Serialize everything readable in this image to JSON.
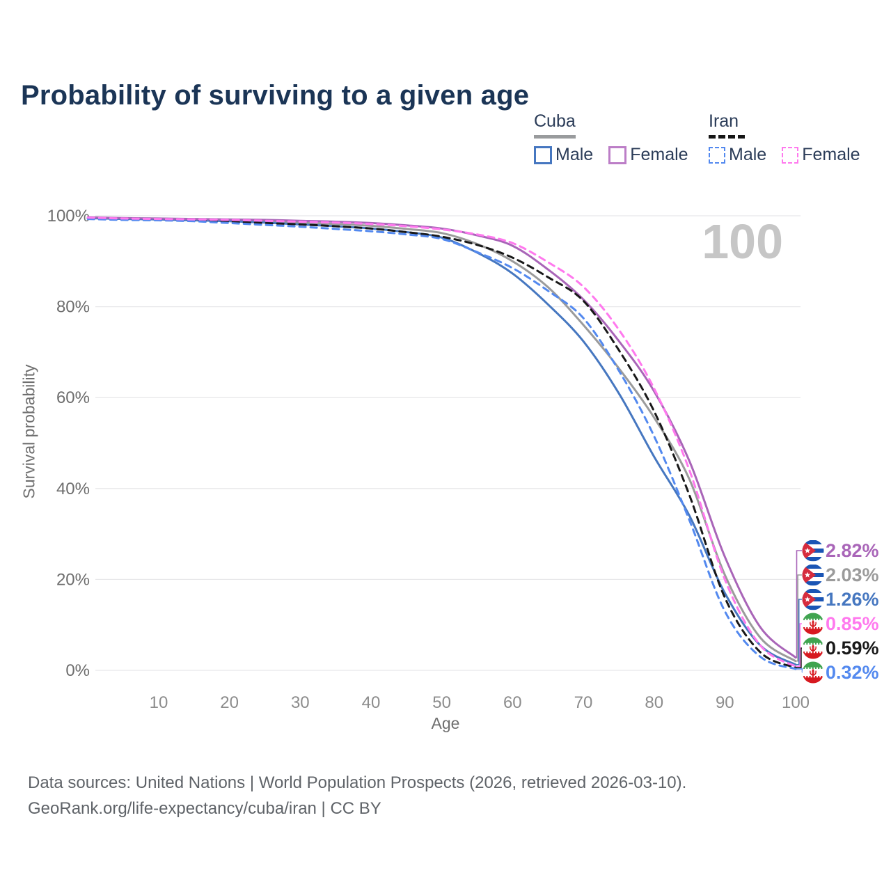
{
  "page": {
    "background": "#ffffff",
    "title_color": "#1b3556"
  },
  "legend": {
    "groups": [
      {
        "id": "cuba",
        "label": "Cuba",
        "line_style": "solid",
        "underline_color": "#999b9d",
        "items": [
          {
            "id": "cuba-male",
            "label": "Male",
            "color": "#4677c0"
          },
          {
            "id": "cuba-female",
            "label": "Female",
            "color": "#bc7ec7"
          }
        ]
      },
      {
        "id": "iran",
        "label": "Iran",
        "line_style": "dashed",
        "underline_color": "#161616",
        "items": [
          {
            "id": "iran-male",
            "label": "Male",
            "color": "#5389ef"
          },
          {
            "id": "iran-female",
            "label": "Female",
            "color": "#ff79ee"
          }
        ]
      }
    ]
  },
  "chart_data": {
    "type": "line",
    "title": "Probability of surviving to a given age",
    "xlabel": "Age",
    "ylabel": "Survival probability",
    "xlim": [
      0,
      100
    ],
    "ylim": [
      0,
      100
    ],
    "grid": "horizontal",
    "gridline_color": "#e8e8ea",
    "legend_position": "top-right",
    "watermark": "100",
    "watermark_color": "#c6c6c6",
    "x_ticks": [
      {
        "value": 10,
        "label": "10"
      },
      {
        "value": 20,
        "label": "20"
      },
      {
        "value": 30,
        "label": "30"
      },
      {
        "value": 40,
        "label": "40"
      },
      {
        "value": 50,
        "label": "50"
      },
      {
        "value": 60,
        "label": "60"
      },
      {
        "value": 70,
        "label": "70"
      },
      {
        "value": 80,
        "label": "80"
      },
      {
        "value": 90,
        "label": "90"
      },
      {
        "value": 100,
        "label": "100"
      }
    ],
    "y_ticks": [
      {
        "value": 0,
        "label": "0%"
      },
      {
        "value": 20,
        "label": "20%"
      },
      {
        "value": 40,
        "label": "40%"
      },
      {
        "value": 60,
        "label": "60%"
      },
      {
        "value": 80,
        "label": "80%"
      },
      {
        "value": 100,
        "label": "100%"
      }
    ],
    "x": [
      0,
      5,
      10,
      15,
      20,
      25,
      30,
      35,
      40,
      45,
      50,
      55,
      60,
      65,
      70,
      75,
      80,
      85,
      90,
      95,
      100
    ],
    "series": [
      {
        "id": "cuba-total",
        "name": "Cuba Both sexes",
        "country": "Cuba",
        "sex": "Both",
        "color": "#9b9b9b",
        "dash": "solid",
        "flag": "cuba-flag-icon",
        "end_label": "2.03%",
        "values": [
          99.6,
          99.4,
          99.3,
          99.2,
          99.0,
          98.8,
          98.5,
          98.2,
          97.8,
          97.1,
          96.2,
          93.8,
          90.0,
          84.3,
          76.0,
          66.5,
          55.6,
          42.0,
          21.0,
          7.2,
          2.03
        ]
      },
      {
        "id": "cuba-male",
        "name": "Cuba Male",
        "country": "Cuba",
        "sex": "Male",
        "color": "#4677c0",
        "dash": "solid",
        "flag": "cuba-flag-icon",
        "end_label": "1.26%",
        "values": [
          99.5,
          99.3,
          99.2,
          99.0,
          98.8,
          98.5,
          98.1,
          97.7,
          97.2,
          96.4,
          95.2,
          91.9,
          87.3,
          80.5,
          72.4,
          61.0,
          47.0,
          34.0,
          17.0,
          5.5,
          1.26
        ]
      },
      {
        "id": "cuba-female",
        "name": "Cuba Female",
        "country": "Cuba",
        "sex": "Female",
        "color": "#a965b8",
        "dash": "solid",
        "flag": "cuba-flag-icon",
        "end_label": "2.82%",
        "values": [
          99.7,
          99.5,
          99.4,
          99.3,
          99.2,
          99.1,
          98.9,
          98.7,
          98.4,
          97.9,
          97.2,
          95.7,
          93.4,
          88.2,
          81.6,
          72.5,
          61.4,
          46.0,
          25.0,
          9.5,
          2.82
        ]
      },
      {
        "id": "iran-total",
        "name": "Iran Both sexes",
        "country": "Iran",
        "sex": "Both",
        "color": "#191919",
        "dash": "dashed",
        "flag": "iran-flag-icon",
        "end_label": "0.59%",
        "values": [
          99.4,
          99.2,
          99.1,
          99.0,
          98.7,
          98.4,
          98.1,
          97.7,
          97.2,
          96.4,
          95.4,
          93.6,
          90.8,
          86.5,
          81.3,
          70.5,
          57.0,
          38.5,
          16.0,
          4.0,
          0.59
        ]
      },
      {
        "id": "iran-male",
        "name": "Iran Male",
        "country": "Iran",
        "sex": "Male",
        "color": "#5389ef",
        "dash": "dashed",
        "flag": "iran-flag-icon",
        "end_label": "0.32%",
        "values": [
          99.3,
          99.1,
          99.0,
          98.8,
          98.4,
          98.0,
          97.6,
          97.1,
          96.6,
          95.9,
          94.9,
          92.0,
          88.5,
          83.5,
          77.5,
          66.0,
          51.5,
          33.0,
          13.0,
          3.0,
          0.32
        ]
      },
      {
        "id": "iran-female",
        "name": "Iran Female",
        "country": "Iran",
        "sex": "Female",
        "color": "#ff79ee",
        "dash": "dashed",
        "flag": "iran-flag-icon",
        "end_label": "0.85%",
        "values": [
          99.6,
          99.4,
          99.3,
          99.2,
          99.1,
          98.9,
          98.7,
          98.5,
          98.2,
          97.7,
          97.0,
          95.9,
          94.0,
          89.8,
          84.4,
          75.0,
          62.0,
          44.0,
          20.0,
          5.5,
          0.85
        ]
      }
    ]
  },
  "footer": {
    "line1": "Data sources: United Nations | World Population Prospects (2026, retrieved 2026-03-10).",
    "line2": "GeoRank.org/life-expectancy/cuba/iran | CC BY"
  }
}
